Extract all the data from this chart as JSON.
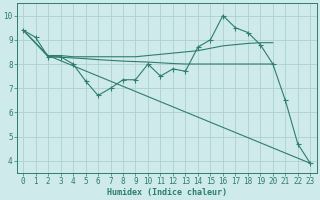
{
  "line1_x": [
    0,
    1,
    2,
    3,
    4,
    5,
    6,
    7,
    8,
    9,
    10,
    11,
    12,
    13,
    14,
    15,
    16,
    17,
    18,
    19,
    20,
    21,
    22,
    23
  ],
  "line1_y": [
    9.4,
    9.1,
    8.3,
    8.3,
    8.0,
    7.3,
    6.7,
    7.0,
    7.35,
    7.35,
    8.0,
    7.5,
    7.8,
    7.7,
    8.7,
    9.0,
    10.0,
    9.5,
    9.3,
    8.8,
    8.0,
    6.5,
    4.7,
    3.9
  ],
  "line2_x": [
    0,
    2,
    3,
    4,
    5,
    6,
    7,
    8,
    9,
    10,
    11,
    12,
    13,
    14,
    15,
    16,
    17,
    18,
    19,
    20
  ],
  "line2_y": [
    9.4,
    8.35,
    8.35,
    8.3,
    8.3,
    8.3,
    8.3,
    8.3,
    8.3,
    8.35,
    8.4,
    8.45,
    8.5,
    8.55,
    8.65,
    8.75,
    8.8,
    8.85,
    8.88,
    8.88
  ],
  "line3_x": [
    0,
    2,
    3,
    4,
    5,
    6,
    7,
    8,
    9,
    10,
    11,
    12,
    13,
    14,
    15,
    16,
    17,
    18,
    19,
    20
  ],
  "line3_y": [
    9.4,
    8.3,
    8.28,
    8.25,
    8.22,
    8.18,
    8.15,
    8.12,
    8.1,
    8.08,
    8.05,
    8.02,
    8.0,
    8.0,
    8.0,
    8.0,
    8.0,
    8.0,
    8.0,
    8.0
  ],
  "line4_x": [
    2,
    23
  ],
  "line4_y": [
    8.35,
    3.9
  ],
  "color": "#2e7d6e",
  "bg_color": "#ceeaea",
  "grid_color": "#aed0d0",
  "xlim": [
    -0.5,
    23.5
  ],
  "ylim": [
    3.5,
    10.5
  ],
  "xlabel": "Humidex (Indice chaleur)",
  "xticks": [
    0,
    1,
    2,
    3,
    4,
    5,
    6,
    7,
    8,
    9,
    10,
    11,
    12,
    13,
    14,
    15,
    16,
    17,
    18,
    19,
    20,
    21,
    22,
    23
  ],
  "yticks": [
    4,
    5,
    6,
    7,
    8,
    9,
    10
  ],
  "axis_fontsize": 6.0,
  "tick_fontsize": 5.5,
  "linewidth": 0.8,
  "markersize": 1.8
}
